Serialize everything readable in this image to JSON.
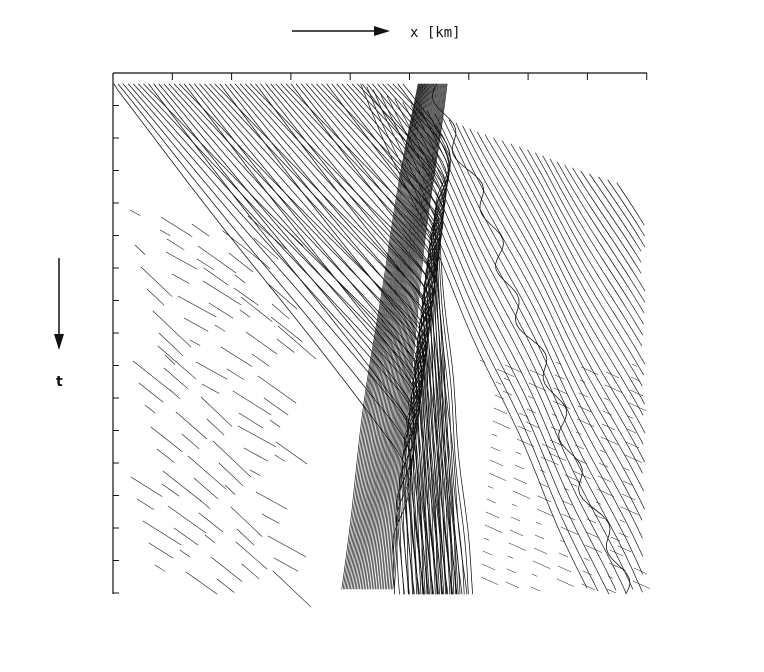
{
  "chart_data": {
    "type": "line",
    "xlabel": "x [km]",
    "ylabel": "t",
    "x_axis_position": "top",
    "t_direction": "downward",
    "grid": false,
    "legend": "none",
    "tick_labels": false,
    "colors": {
      "trajectory": "#111111",
      "axis": "#111111",
      "background": "#ffffff"
    }
  }
}
